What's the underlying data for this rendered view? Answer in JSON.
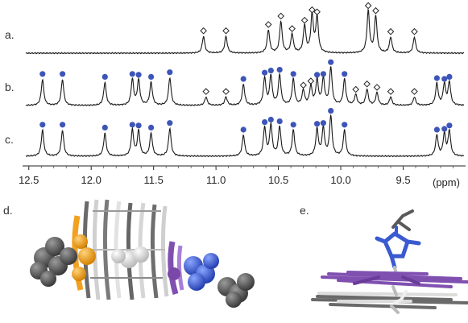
{
  "chart_data": {
    "type": "line",
    "xlabel": "(ppm)",
    "xlim": [
      12.55,
      9.0
    ],
    "x_ticks": [
      "12.5",
      "12.0",
      "11.5",
      "11.0",
      "10.5",
      "10.0",
      "9.5"
    ],
    "x_tick_values": [
      12.5,
      12.0,
      11.5,
      11.0,
      10.5,
      10.0,
      9.5
    ],
    "series": [
      {
        "label": "a.",
        "peaks": [
          {
            "ppm": 11.1,
            "h": 0.4,
            "marker": "diamond"
          },
          {
            "ppm": 10.92,
            "h": 0.4,
            "marker": "diamond"
          },
          {
            "ppm": 10.58,
            "h": 0.55,
            "marker": "diamond"
          },
          {
            "ppm": 10.48,
            "h": 0.75,
            "marker": "diamond"
          },
          {
            "ppm": 10.39,
            "h": 0.45,
            "marker": "diamond"
          },
          {
            "ppm": 10.29,
            "h": 0.65,
            "marker": "diamond"
          },
          {
            "ppm": 10.23,
            "h": 0.9,
            "marker": "diamond"
          },
          {
            "ppm": 10.19,
            "h": 0.85,
            "marker": "diamond"
          },
          {
            "ppm": 9.78,
            "h": 1.0,
            "marker": "diamond"
          },
          {
            "ppm": 9.72,
            "h": 0.88,
            "marker": "diamond"
          },
          {
            "ppm": 9.6,
            "h": 0.38,
            "marker": "diamond"
          },
          {
            "ppm": 9.41,
            "h": 0.38,
            "marker": "diamond"
          }
        ]
      },
      {
        "label": "b.",
        "peaks": [
          {
            "ppm": 12.39,
            "h": 0.62,
            "marker": "dot"
          },
          {
            "ppm": 12.23,
            "h": 0.62,
            "marker": "dot"
          },
          {
            "ppm": 11.89,
            "h": 0.55,
            "marker": "dot"
          },
          {
            "ppm": 11.67,
            "h": 0.62,
            "marker": "dot"
          },
          {
            "ppm": 11.62,
            "h": 0.6,
            "marker": "dot"
          },
          {
            "ppm": 11.52,
            "h": 0.55,
            "marker": "dot"
          },
          {
            "ppm": 11.37,
            "h": 0.66,
            "marker": "dot"
          },
          {
            "ppm": 11.08,
            "h": 0.2,
            "marker": "diamond"
          },
          {
            "ppm": 10.92,
            "h": 0.2,
            "marker": "diamond"
          },
          {
            "ppm": 10.78,
            "h": 0.5,
            "marker": "dot"
          },
          {
            "ppm": 10.61,
            "h": 0.65,
            "marker": "dot"
          },
          {
            "ppm": 10.56,
            "h": 0.7,
            "marker": "dot"
          },
          {
            "ppm": 10.49,
            "h": 0.72,
            "marker": "dot"
          },
          {
            "ppm": 10.38,
            "h": 0.62,
            "marker": "dot"
          },
          {
            "ppm": 10.3,
            "h": 0.35,
            "marker": "diamond"
          },
          {
            "ppm": 10.24,
            "h": 0.45,
            "marker": "diamond"
          },
          {
            "ppm": 10.19,
            "h": 0.6,
            "marker": "dot"
          },
          {
            "ppm": 10.14,
            "h": 0.62,
            "marker": "dot"
          },
          {
            "ppm": 10.08,
            "h": 0.9,
            "marker": "dot"
          },
          {
            "ppm": 9.97,
            "h": 0.62,
            "marker": "dot"
          },
          {
            "ppm": 9.88,
            "h": 0.25,
            "marker": "diamond"
          },
          {
            "ppm": 9.79,
            "h": 0.38,
            "marker": "diamond"
          },
          {
            "ppm": 9.71,
            "h": 0.3,
            "marker": "diamond"
          },
          {
            "ppm": 9.6,
            "h": 0.2,
            "marker": "diamond"
          },
          {
            "ppm": 9.41,
            "h": 0.2,
            "marker": "diamond"
          },
          {
            "ppm": 9.23,
            "h": 0.52,
            "marker": "dot"
          },
          {
            "ppm": 9.17,
            "h": 0.5,
            "marker": "dot"
          },
          {
            "ppm": 9.13,
            "h": 0.55,
            "marker": "dot"
          }
        ]
      },
      {
        "label": "c.",
        "peaks": [
          {
            "ppm": 12.39,
            "h": 0.62,
            "marker": "dot"
          },
          {
            "ppm": 12.23,
            "h": 0.62,
            "marker": "dot"
          },
          {
            "ppm": 11.89,
            "h": 0.55,
            "marker": "dot"
          },
          {
            "ppm": 11.67,
            "h": 0.62,
            "marker": "dot"
          },
          {
            "ppm": 11.62,
            "h": 0.6,
            "marker": "dot"
          },
          {
            "ppm": 11.52,
            "h": 0.55,
            "marker": "dot"
          },
          {
            "ppm": 11.37,
            "h": 0.66,
            "marker": "dot"
          },
          {
            "ppm": 10.78,
            "h": 0.5,
            "marker": "dot"
          },
          {
            "ppm": 10.61,
            "h": 0.68,
            "marker": "dot"
          },
          {
            "ppm": 10.56,
            "h": 0.74,
            "marker": "dot"
          },
          {
            "ppm": 10.49,
            "h": 0.7,
            "marker": "dot"
          },
          {
            "ppm": 10.38,
            "h": 0.62,
            "marker": "dot"
          },
          {
            "ppm": 10.19,
            "h": 0.64,
            "marker": "dot"
          },
          {
            "ppm": 10.14,
            "h": 0.66,
            "marker": "dot"
          },
          {
            "ppm": 10.08,
            "h": 0.95,
            "marker": "dot"
          },
          {
            "ppm": 9.97,
            "h": 0.62,
            "marker": "dot"
          },
          {
            "ppm": 9.23,
            "h": 0.5,
            "marker": "dot"
          },
          {
            "ppm": 9.17,
            "h": 0.52,
            "marker": "dot"
          },
          {
            "ppm": 9.13,
            "h": 0.6,
            "marker": "dot"
          }
        ]
      }
    ],
    "colors": {
      "trace": "#1a1a1a",
      "dot_marker": "#3d55b8",
      "diamond_marker": "#222222"
    }
  },
  "panels": {
    "d_label": "d.",
    "e_label": "e."
  },
  "structure_colors": {
    "gray": "#5a5a5a",
    "light": "#d9d9d9",
    "orange": "#f2a020",
    "purple": "#8050b0",
    "blue": "#3a5ad0"
  }
}
